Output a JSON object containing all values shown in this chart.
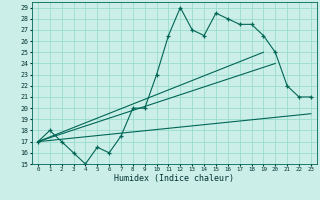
{
  "title": "",
  "xlabel": "Humidex (Indice chaleur)",
  "bg_color": "#cceee8",
  "grid_color": "#99ddcc",
  "line_color": "#006655",
  "xlim": [
    -0.5,
    23.5
  ],
  "ylim": [
    15,
    29.5
  ],
  "xticks": [
    0,
    1,
    2,
    3,
    4,
    5,
    6,
    7,
    8,
    9,
    10,
    11,
    12,
    13,
    14,
    15,
    16,
    17,
    18,
    19,
    20,
    21,
    22,
    23
  ],
  "yticks": [
    15,
    16,
    17,
    18,
    19,
    20,
    21,
    22,
    23,
    24,
    25,
    26,
    27,
    28,
    29
  ],
  "line1_x": [
    0,
    1,
    2,
    3,
    4,
    5,
    6,
    7,
    8,
    9,
    10,
    11,
    12,
    13,
    14,
    15,
    16,
    17,
    18,
    19,
    20,
    21,
    22,
    23
  ],
  "line1_y": [
    17.0,
    18.0,
    17.0,
    16.0,
    15.0,
    16.5,
    16.0,
    17.5,
    20.0,
    20.0,
    23.0,
    26.5,
    29.0,
    27.0,
    26.5,
    28.5,
    28.0,
    27.5,
    27.5,
    26.5,
    25.0,
    22.0,
    21.0,
    21.0
  ],
  "line2_x": [
    0,
    23
  ],
  "line2_y": [
    17.0,
    19.5
  ],
  "line3_x": [
    0,
    20
  ],
  "line3_y": [
    17.0,
    24.0
  ],
  "line4_x": [
    0,
    19
  ],
  "line4_y": [
    17.0,
    25.0
  ]
}
